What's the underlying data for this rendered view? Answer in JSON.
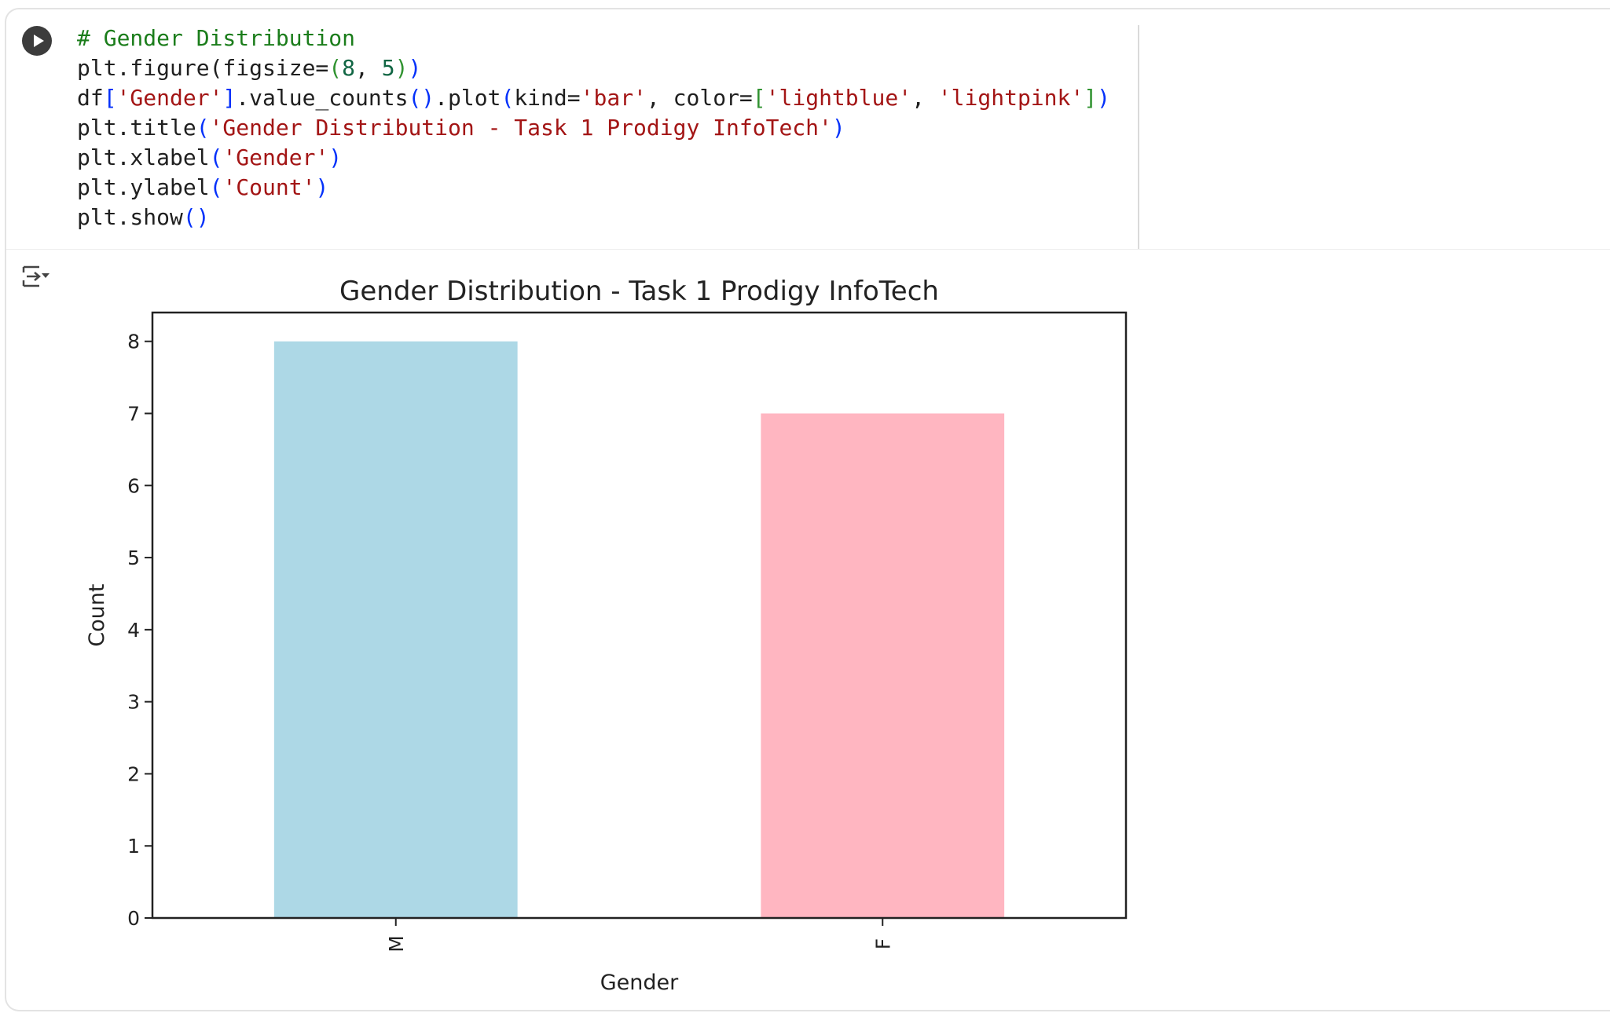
{
  "cell": {
    "code_tokens": [
      [
        {
          "t": "# Gender Distribution",
          "c": "comment"
        }
      ],
      [
        {
          "t": "plt.figure(figsize="
        },
        {
          "t": "(",
          "c": "bracket"
        },
        {
          "t": "8",
          "c": "num"
        },
        {
          "t": ", "
        },
        {
          "t": "5",
          "c": "num"
        },
        {
          "t": ")",
          "c": "bracket"
        },
        {
          "t": ")",
          "c": "paren"
        }
      ],
      [
        {
          "t": "df"
        },
        {
          "t": "[",
          "c": "paren"
        },
        {
          "t": "'Gender'",
          "c": "str"
        },
        {
          "t": "]",
          "c": "paren"
        },
        {
          "t": ".value_counts"
        },
        {
          "t": "()",
          "c": "paren"
        },
        {
          "t": ".plot"
        },
        {
          "t": "(",
          "c": "paren"
        },
        {
          "t": "kind="
        },
        {
          "t": "'bar'",
          "c": "str"
        },
        {
          "t": ", color="
        },
        {
          "t": "[",
          "c": "bracket"
        },
        {
          "t": "'lightblue'",
          "c": "str"
        },
        {
          "t": ", "
        },
        {
          "t": "'lightpink'",
          "c": "str"
        },
        {
          "t": "]",
          "c": "bracket"
        },
        {
          "t": ")",
          "c": "paren"
        }
      ],
      [
        {
          "t": "plt.title"
        },
        {
          "t": "(",
          "c": "paren"
        },
        {
          "t": "'Gender Distribution - Task 1 Prodigy InfoTech'",
          "c": "str"
        },
        {
          "t": ")",
          "c": "paren"
        }
      ],
      [
        {
          "t": "plt.xlabel"
        },
        {
          "t": "(",
          "c": "paren"
        },
        {
          "t": "'Gender'",
          "c": "str"
        },
        {
          "t": ")",
          "c": "paren"
        }
      ],
      [
        {
          "t": "plt.ylabel"
        },
        {
          "t": "(",
          "c": "paren"
        },
        {
          "t": "'Count'",
          "c": "str"
        },
        {
          "t": ")",
          "c": "paren"
        }
      ],
      [
        {
          "t": "plt.show"
        },
        {
          "t": "()",
          "c": "paren"
        }
      ]
    ]
  },
  "chart_data": {
    "type": "bar",
    "title": "Gender Distribution - Task 1 Prodigy InfoTech",
    "xlabel": "Gender",
    "ylabel": "Count",
    "categories": [
      "M",
      "F"
    ],
    "values": [
      8,
      7
    ],
    "colors": [
      "#add8e6",
      "#ffb6c1"
    ],
    "ylim": [
      0,
      8.4
    ],
    "yticks": [
      0,
      1,
      2,
      3,
      4,
      5,
      6,
      7,
      8
    ],
    "grid": false
  }
}
